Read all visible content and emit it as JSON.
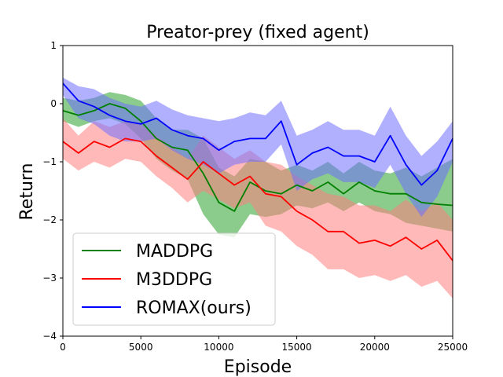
{
  "chart_data": {
    "type": "line",
    "title": "Preator-prey (fixed agent)",
    "xlabel": "Episode",
    "ylabel": "Return",
    "xlim": [
      0,
      25000
    ],
    "ylim": [
      -4,
      1
    ],
    "xticks": [
      0,
      5000,
      10000,
      15000,
      20000,
      25000
    ],
    "yticks": [
      -4,
      -3,
      -2,
      -1,
      0,
      1
    ],
    "xtick_labels": [
      "0",
      "5000",
      "10000",
      "15000",
      "20000",
      "25000"
    ],
    "ytick_labels": [
      "−4",
      "−3",
      "−2",
      "−1",
      "0",
      "1"
    ],
    "grid": false,
    "legend_position": "lower-left",
    "series": [
      {
        "name": "MADDPG",
        "color": "#008000",
        "band_color": "#2ca02c",
        "x": [
          0,
          1000,
          2000,
          3000,
          4000,
          5000,
          6000,
          7000,
          8000,
          9000,
          10000,
          11000,
          12000,
          13000,
          14000,
          15000,
          16000,
          17000,
          18000,
          19000,
          20000,
          21000,
          22000,
          23000,
          24000,
          25000
        ],
        "y": [
          -0.12,
          -0.2,
          -0.12,
          0.0,
          -0.08,
          -0.3,
          -0.6,
          -0.75,
          -0.8,
          -1.2,
          -1.7,
          -1.85,
          -1.35,
          -1.5,
          -1.55,
          -1.4,
          -1.5,
          -1.35,
          -1.55,
          -1.35,
          -1.5,
          -1.55,
          -1.55,
          -1.7,
          -1.73,
          -1.75
        ],
        "lower": [
          -0.3,
          -0.4,
          -0.3,
          -0.25,
          -0.35,
          -0.6,
          -0.95,
          -1.15,
          -1.3,
          -1.9,
          -2.25,
          -2.3,
          -1.9,
          -1.95,
          -1.9,
          -1.75,
          -1.8,
          -1.7,
          -1.85,
          -1.7,
          -1.85,
          -1.9,
          -2.05,
          -2.1,
          -2.15,
          -2.2
        ],
        "upper": [
          0.1,
          0.05,
          0.1,
          0.2,
          0.15,
          0.05,
          -0.25,
          -0.45,
          -0.45,
          -0.6,
          -1.1,
          -1.25,
          -0.95,
          -1.0,
          -1.15,
          -1.05,
          -1.15,
          -1.0,
          -1.2,
          -1.0,
          -1.15,
          -1.2,
          -1.1,
          -1.25,
          -1.1,
          -0.95
        ]
      },
      {
        "name": "M3DDPG",
        "color": "#ff0000",
        "band_color": "#ff7f7f",
        "x": [
          0,
          1000,
          2000,
          3000,
          4000,
          5000,
          6000,
          7000,
          8000,
          9000,
          10000,
          11000,
          12000,
          13000,
          14000,
          15000,
          16000,
          17000,
          18000,
          19000,
          20000,
          21000,
          22000,
          23000,
          24000,
          25000
        ],
        "y": [
          -0.65,
          -0.85,
          -0.65,
          -0.75,
          -0.6,
          -0.65,
          -0.9,
          -1.1,
          -1.3,
          -1.0,
          -1.2,
          -1.4,
          -1.25,
          -1.55,
          -1.6,
          -1.85,
          -2.0,
          -2.2,
          -2.2,
          -2.4,
          -2.35,
          -2.45,
          -2.3,
          -2.5,
          -2.35,
          -2.7
        ],
        "lower": [
          -0.95,
          -1.15,
          -1.0,
          -1.1,
          -0.95,
          -1.0,
          -1.25,
          -1.45,
          -1.7,
          -1.5,
          -1.65,
          -1.8,
          -1.7,
          -2.1,
          -2.2,
          -2.45,
          -2.6,
          -2.85,
          -2.85,
          -3.0,
          -2.95,
          -3.05,
          -2.95,
          -3.15,
          -3.05,
          -3.35
        ],
        "upper": [
          -0.25,
          -0.55,
          -0.3,
          -0.4,
          -0.3,
          -0.35,
          -0.55,
          -0.75,
          -0.95,
          -0.55,
          -0.75,
          -0.95,
          -0.8,
          -1.0,
          -1.05,
          -1.25,
          -1.4,
          -1.55,
          -1.6,
          -1.75,
          -1.75,
          -1.85,
          -1.65,
          -1.85,
          -1.7,
          -2.0
        ]
      },
      {
        "name": "ROMAX(ours)",
        "color": "#0000ff",
        "band_color": "#6f6fff",
        "x": [
          0,
          1000,
          2000,
          3000,
          4000,
          5000,
          6000,
          7000,
          8000,
          9000,
          10000,
          11000,
          12000,
          13000,
          14000,
          15000,
          16000,
          17000,
          18000,
          19000,
          20000,
          21000,
          22000,
          23000,
          24000,
          25000
        ],
        "y": [
          0.35,
          0.05,
          -0.05,
          -0.2,
          -0.3,
          -0.35,
          -0.25,
          -0.45,
          -0.55,
          -0.6,
          -0.8,
          -0.65,
          -0.6,
          -0.6,
          -0.3,
          -1.05,
          -0.85,
          -0.75,
          -0.9,
          -0.9,
          -1.0,
          -0.55,
          -1.05,
          -1.4,
          -1.15,
          -0.6
        ],
        "lower": [
          0.15,
          -0.25,
          -0.35,
          -0.55,
          -0.65,
          -0.65,
          -0.6,
          -0.8,
          -0.95,
          -1.05,
          -1.2,
          -1.05,
          -1.0,
          -1.0,
          -0.7,
          -1.5,
          -1.3,
          -1.2,
          -1.35,
          -1.35,
          -1.45,
          -1.05,
          -1.55,
          -1.95,
          -1.6,
          -1.0
        ],
        "upper": [
          0.45,
          0.3,
          0.25,
          0.1,
          0.0,
          -0.05,
          0.05,
          -0.1,
          -0.2,
          -0.25,
          -0.3,
          -0.25,
          -0.15,
          -0.2,
          0.05,
          -0.55,
          -0.45,
          -0.3,
          -0.45,
          -0.45,
          -0.55,
          -0.05,
          -0.55,
          -0.9,
          -0.65,
          -0.3
        ]
      }
    ]
  }
}
